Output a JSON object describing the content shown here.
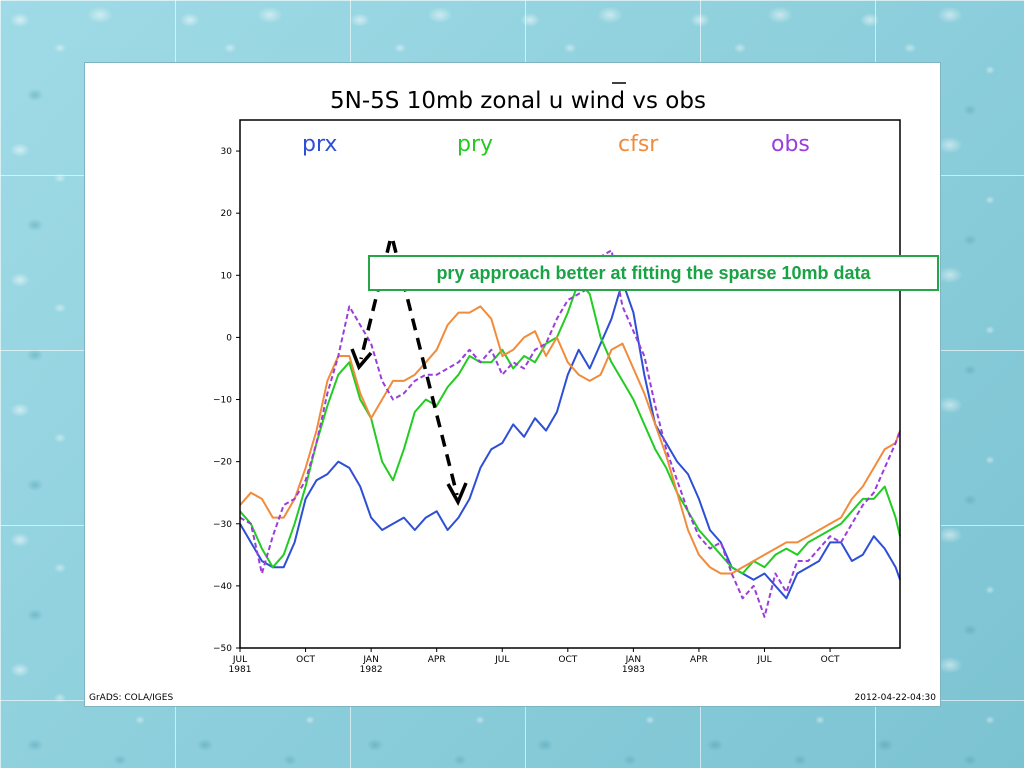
{
  "chart_data": {
    "type": "line",
    "title": "5N-5S 10mb zonal u wind vs obs",
    "xlabel": "",
    "ylabel": "",
    "ylim": [
      -50,
      35
    ],
    "yticks": [
      30,
      20,
      10,
      0,
      -10,
      -20,
      -30,
      -40,
      -50
    ],
    "ytick_labels": [
      "30",
      "20",
      "10",
      "0",
      "-10",
      "-20",
      "-30",
      "-40",
      "-50"
    ],
    "x_unit": "months since JUL 1981",
    "xlim": [
      0,
      30.2
    ],
    "xticks": [
      {
        "m": 0,
        "label": "JUL",
        "sub": "1981"
      },
      {
        "m": 3,
        "label": "OCT",
        "sub": ""
      },
      {
        "m": 6,
        "label": "JAN",
        "sub": "1982"
      },
      {
        "m": 9,
        "label": "APR",
        "sub": ""
      },
      {
        "m": 12,
        "label": "JUL",
        "sub": ""
      },
      {
        "m": 15,
        "label": "OCT",
        "sub": ""
      },
      {
        "m": 18,
        "label": "JAN",
        "sub": "1983"
      },
      {
        "m": 21,
        "label": "APR",
        "sub": ""
      },
      {
        "m": 24,
        "label": "JUL",
        "sub": ""
      },
      {
        "m": 27,
        "label": "OCT",
        "sub": ""
      }
    ],
    "series": [
      {
        "name": "prx",
        "color": "#2d4fd6",
        "dashed": false,
        "x": [
          0,
          0.5,
          1,
          1.5,
          2,
          2.5,
          3,
          3.5,
          4,
          4.5,
          5,
          5.5,
          6,
          6.5,
          7,
          7.5,
          8,
          8.5,
          9,
          9.5,
          10,
          10.5,
          11,
          11.5,
          12,
          12.5,
          13,
          13.5,
          14,
          14.5,
          15,
          15.5,
          16,
          16.5,
          17,
          17.5,
          18,
          18.5,
          19,
          19.5,
          20,
          20.5,
          21,
          21.5,
          22,
          22.5,
          23,
          23.5,
          24,
          24.5,
          25,
          25.5,
          26,
          26.5,
          27,
          27.5,
          28,
          28.5,
          29,
          29.5,
          30,
          30.2
        ],
        "y": [
          -30,
          -33,
          -36,
          -37,
          -37,
          -33,
          -26,
          -23,
          -22,
          -20,
          -21,
          -24,
          -29,
          -31,
          -30,
          -29,
          -31,
          -29,
          -28,
          -31,
          -29,
          -26,
          -21,
          -18,
          -17,
          -14,
          -16,
          -13,
          -15,
          -12,
          -6,
          -2,
          -5,
          -1,
          3,
          9,
          4,
          -6,
          -14,
          -17,
          -20,
          -22,
          -26,
          -31,
          -33,
          -37,
          -38,
          -39,
          -38,
          -40,
          -42,
          -38,
          -37,
          -36,
          -33,
          -33,
          -36,
          -35,
          -32,
          -34,
          -37,
          -39
        ]
      },
      {
        "name": "pry",
        "color": "#22cc22",
        "dashed": false,
        "x": [
          0,
          0.5,
          1,
          1.5,
          2,
          2.5,
          3,
          3.5,
          4,
          4.5,
          5,
          5.5,
          6,
          6.5,
          7,
          7.5,
          8,
          8.5,
          9,
          9.5,
          10,
          10.5,
          11,
          11.5,
          12,
          12.5,
          13,
          13.5,
          14,
          14.5,
          15,
          15.5,
          16,
          16.5,
          17,
          17.5,
          18,
          18.5,
          19,
          19.5,
          20,
          20.5,
          21,
          21.5,
          22,
          22.5,
          23,
          23.5,
          24,
          24.5,
          25,
          25.5,
          26,
          26.5,
          27,
          27.5,
          28,
          28.5,
          29,
          29.5,
          30,
          30.2
        ],
        "y": [
          -28,
          -30,
          -34,
          -37,
          -35,
          -30,
          -24,
          -17,
          -11,
          -6,
          -4,
          -10,
          -13,
          -20,
          -23,
          -18,
          -12,
          -10,
          -11,
          -8,
          -6,
          -3,
          -4,
          -4,
          -2,
          -5,
          -3,
          -4,
          -1,
          0,
          4,
          9,
          7,
          0,
          -4,
          -7,
          -10,
          -14,
          -18,
          -21,
          -25,
          -28,
          -31,
          -33,
          -35,
          -37,
          -38,
          -36,
          -37,
          -35,
          -34,
          -35,
          -33,
          -32,
          -31,
          -30,
          -28,
          -26,
          -26,
          -24,
          -29,
          -32
        ]
      },
      {
        "name": "cfsr",
        "color": "#f08c3c",
        "dashed": false,
        "x": [
          0,
          0.5,
          1,
          1.5,
          2,
          2.5,
          3,
          3.5,
          4,
          4.5,
          5,
          5.5,
          6,
          6.5,
          7,
          7.5,
          8,
          8.5,
          9,
          9.5,
          10,
          10.5,
          11,
          11.5,
          12,
          12.5,
          13,
          13.5,
          14,
          14.5,
          15,
          15.5,
          16,
          16.5,
          17,
          17.5,
          18,
          18.5,
          19,
          19.5,
          20,
          20.5,
          21,
          21.5,
          22,
          22.5,
          23,
          23.5,
          24,
          24.5,
          25,
          25.5,
          26,
          26.5,
          27,
          27.5,
          28,
          28.5,
          29,
          29.5,
          30,
          30.2
        ],
        "y": [
          -27,
          -25,
          -26,
          -29,
          -29,
          -26,
          -21,
          -15,
          -7,
          -3,
          -3,
          -9,
          -13,
          -10,
          -7,
          -7,
          -6,
          -4,
          -2,
          2,
          4,
          4,
          5,
          3,
          -3,
          -2,
          0,
          1,
          -3,
          0,
          -4,
          -6,
          -7,
          -6,
          -2,
          -1,
          -5,
          -9,
          -14,
          -19,
          -25,
          -31,
          -35,
          -37,
          -38,
          -38,
          -37,
          -36,
          -35,
          -34,
          -33,
          -33,
          -32,
          -31,
          -30,
          -29,
          -26,
          -24,
          -21,
          -18,
          -17,
          -15
        ]
      },
      {
        "name": "obs",
        "color": "#9a3ddb",
        "dashed": true,
        "x": [
          0,
          0.5,
          1,
          1.5,
          2,
          2.5,
          3,
          3.5,
          4,
          4.5,
          5,
          5.5,
          6,
          6.5,
          7,
          7.5,
          8,
          8.5,
          9,
          9.5,
          10,
          10.5,
          11,
          11.5,
          12,
          12.5,
          13,
          13.5,
          14,
          14.5,
          15,
          15.5,
          16,
          16.5,
          17,
          17.5,
          18,
          18.5,
          19,
          19.5,
          20,
          20.5,
          21,
          21.5,
          22,
          22.5,
          23,
          23.5,
          24,
          24.5,
          25,
          25.5,
          26,
          26.5,
          27,
          27.5,
          28,
          28.5,
          29,
          29.5,
          30,
          30.2
        ],
        "y": [
          -29,
          -30,
          -38,
          -32,
          -27,
          -26,
          -23,
          -17,
          -9,
          -3,
          5,
          2,
          -1,
          -7,
          -10,
          -9,
          -7,
          -6,
          -6,
          -5,
          -4,
          -2,
          -4,
          -2,
          -6,
          -4,
          -5,
          -2,
          -1,
          3,
          6,
          7,
          8,
          13,
          14,
          5,
          1,
          -3,
          -11,
          -18,
          -23,
          -28,
          -32,
          -34,
          -33,
          -38,
          -42,
          -40,
          -45,
          -38,
          -41,
          -36,
          -36,
          -34,
          -32,
          -33,
          -30,
          -27,
          -25,
          -21,
          -17,
          -15
        ]
      }
    ],
    "legend_position": "top",
    "grid": false
  },
  "annotation": "pry approach better at fitting the sparse 10mb data",
  "footer_left": "GrADS: COLA/IGES",
  "footer_right": "2012-04-22-04:30",
  "colors": {
    "annotation_border": "#27a648",
    "annotation_text": "#18a345",
    "arrow": "#000000"
  }
}
